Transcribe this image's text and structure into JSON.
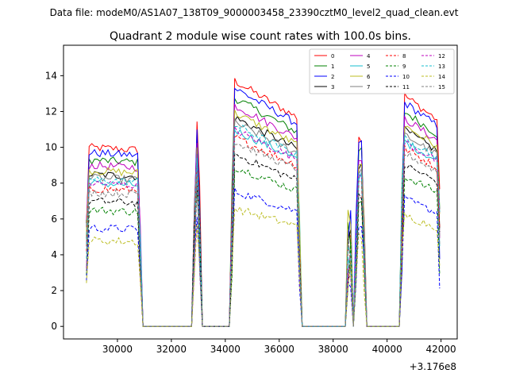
{
  "chart_data": {
    "type": "line",
    "suptitle": "Data file: modeM0/AS1A07_138T09_9000003458_23390cztM0_level2_quad_clean.evt",
    "title": "Quadrant 2 module wise count rates with 100.0s bins.",
    "xlabel": "",
    "ylabel": "",
    "x_offset_label": "+3.176e8",
    "xlim": [
      28000,
      42600
    ],
    "ylim": [
      -0.7,
      15.7
    ],
    "xticks": [
      "30000",
      "32000",
      "34000",
      "36000",
      "38000",
      "40000",
      "42000"
    ],
    "yticks": [
      "0",
      "2",
      "4",
      "6",
      "8",
      "10",
      "12",
      "14"
    ],
    "segments": [
      {
        "start": 28850,
        "end": 30850,
        "peak": 1.0,
        "decay": 0.015
      },
      {
        "start": 32850,
        "end": 33050,
        "peak": 1.15,
        "decay": 0.0
      },
      {
        "start": 34250,
        "end": 36750,
        "peak": 1.38,
        "decay": 0.16
      },
      {
        "start": 38550,
        "end": 38650,
        "peak": 1.1,
        "decay": 0.0
      },
      {
        "start": 38850,
        "end": 39150,
        "peak": 1.05,
        "decay": 0.0
      },
      {
        "start": 40550,
        "end": 41950,
        "peak": 1.3,
        "decay": 0.12
      }
    ],
    "series": [
      {
        "name": "0",
        "color": "#ff0000",
        "dash": "solid",
        "level": 10.0
      },
      {
        "name": "1",
        "color": "#008000",
        "dash": "solid",
        "level": 9.3
      },
      {
        "name": "2",
        "color": "#0000ff",
        "dash": "solid",
        "level": 9.7
      },
      {
        "name": "3",
        "color": "#000000",
        "dash": "solid",
        "level": 8.5
      },
      {
        "name": "4",
        "color": "#bf00bf",
        "dash": "solid",
        "level": 9.0
      },
      {
        "name": "5",
        "color": "#17becf",
        "dash": "solid",
        "level": 8.0
      },
      {
        "name": "6",
        "color": "#bcbd22",
        "dash": "solid",
        "level": 8.7
      },
      {
        "name": "7",
        "color": "#7f7f7f",
        "dash": "solid",
        "level": 8.3
      },
      {
        "name": "8",
        "color": "#ff0000",
        "dash": "dashed",
        "level": 7.7
      },
      {
        "name": "9",
        "color": "#008000",
        "dash": "dashed",
        "level": 6.5
      },
      {
        "name": "10",
        "color": "#0000ff",
        "dash": "dashed",
        "level": 5.5
      },
      {
        "name": "11",
        "color": "#000000",
        "dash": "dashed",
        "level": 7.0
      },
      {
        "name": "12",
        "color": "#bf00bf",
        "dash": "dashed",
        "level": 8.0
      },
      {
        "name": "13",
        "color": "#17becf",
        "dash": "dashed",
        "level": 8.2
      },
      {
        "name": "14",
        "color": "#bcbd22",
        "dash": "dashed",
        "level": 4.8
      },
      {
        "name": "15",
        "color": "#7f7f7f",
        "dash": "dashed",
        "level": 7.5
      }
    ]
  }
}
